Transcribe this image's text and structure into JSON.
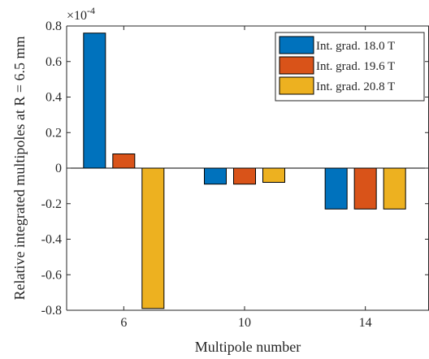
{
  "chart_data": {
    "type": "bar",
    "title": "",
    "xlabel": "Multipole number",
    "ylabel": "Relative integrated multipoles at R = 6.5 mm",
    "y_multiplier_label": "×10",
    "y_multiplier_exponent": "-4",
    "categories": [
      "6",
      "10",
      "14"
    ],
    "ylim": [
      -0.8,
      0.8
    ],
    "yticks": [
      -0.8,
      -0.6,
      -0.4,
      -0.2,
      0,
      0.2,
      0.4,
      0.6,
      0.8
    ],
    "ytick_labels": [
      "-0.8",
      "-0.6",
      "-0.4",
      "-0.2",
      "0",
      "0.2",
      "0.4",
      "0.6",
      "0.8"
    ],
    "series": [
      {
        "name": "Int. grad. 18.0 T",
        "color": "#0072bd",
        "values": [
          0.76,
          -0.09,
          -0.23
        ]
      },
      {
        "name": "Int. grad. 19.6 T",
        "color": "#d95319",
        "values": [
          0.08,
          -0.09,
          -0.23
        ]
      },
      {
        "name": "Int. grad. 20.8 T",
        "color": "#edb120",
        "values": [
          -0.79,
          -0.08,
          -0.23
        ]
      }
    ],
    "legend_position": "top-right",
    "grid": false
  }
}
